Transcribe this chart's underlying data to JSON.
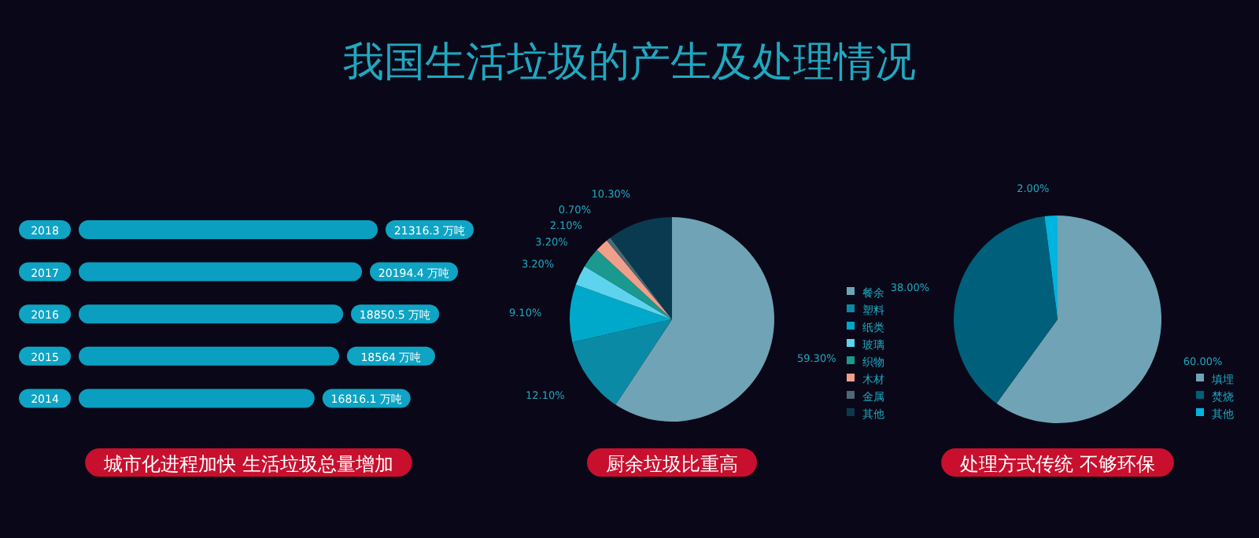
{
  "chart_data": [
    {
      "type": "other",
      "title": "我国生活垃圾的产生及处理情况"
    },
    {
      "type": "bar",
      "orientation": "horizontal",
      "categories": [
        "2018",
        "2017",
        "2016",
        "2015",
        "2014"
      ],
      "values": [
        21316.3,
        20194.4,
        18850.5,
        18564,
        16816.1
      ],
      "value_labels": [
        "21316.3 万吨",
        "20194.4 万吨",
        "18850.5 万吨",
        "18564 万吨",
        "16816.1 万吨"
      ],
      "color": "#0a9fc0",
      "annotations": [
        "城市化进程加快 生活垃圾总量增加"
      ]
    },
    {
      "type": "pie",
      "categories": [
        "餐余",
        "塑料",
        "纸类",
        "玻璃",
        "织物",
        "木材",
        "金属",
        "其他"
      ],
      "values": [
        59.3,
        12.1,
        9.1,
        3.2,
        3.2,
        2.1,
        0.7,
        10.3
      ],
      "value_labels": [
        "59.30%",
        "12.10%",
        "9.10%",
        "3.20%",
        "3.20%",
        "2.10%",
        "0.70%",
        "10.30%"
      ],
      "colors": [
        "#6fa3b5",
        "#0b8aa6",
        "#00a9c9",
        "#5ed3ee",
        "#1a9a8f",
        "#f0a08a",
        "#4a6a75",
        "#0a3a50"
      ],
      "legend": "right",
      "annotations": [
        "厨余垃圾比重高"
      ]
    },
    {
      "type": "pie",
      "categories": [
        "填埋",
        "焚烧",
        "其他"
      ],
      "values": [
        60,
        38,
        2
      ],
      "value_labels": [
        "60.00%",
        "38.00%",
        "2.00%"
      ],
      "colors": [
        "#6fa3b5",
        "#005f7a",
        "#00b4e0"
      ],
      "legend": "bottom right",
      "annotations": [
        "处理方式传统 不够环保"
      ]
    }
  ]
}
